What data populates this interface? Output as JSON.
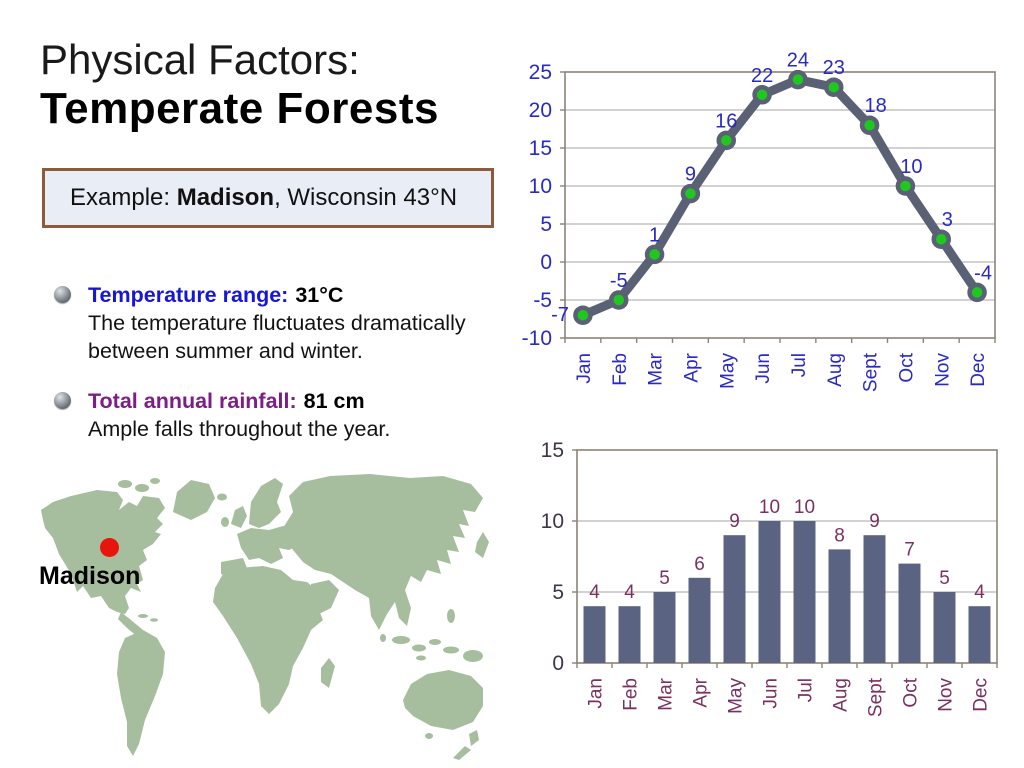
{
  "slide": {
    "title_line1": "Physical Factors:",
    "title_line2": "Temperate Forests",
    "example": {
      "prefix": "Example: ",
      "city": "Madison",
      "suffix": ", Wisconsin 43°N"
    },
    "bullets": [
      {
        "label": "Temperature range",
        "colon": ":",
        "value": "31°C",
        "desc": "The temperature fluctuates dramatically between summer and winter.",
        "label_color": "#1616D6"
      },
      {
        "label": "Total annual rainfall",
        "colon": ":",
        "value": "81 cm",
        "desc": "Ample falls throughout the year.",
        "label_color": "#7D1D86"
      }
    ],
    "map": {
      "label": "Madison",
      "marker_color": "#E8150D",
      "land_color": "#A6BE9D"
    }
  },
  "chart_data": [
    {
      "type": "line",
      "categories": [
        "Jan",
        "Feb",
        "Mar",
        "Apr",
        "May",
        "Jun",
        "Jul",
        "Aug",
        "Sept",
        "Oct",
        "Nov",
        "Dec"
      ],
      "values": [
        -7,
        -5,
        1,
        9,
        16,
        22,
        24,
        23,
        18,
        10,
        3,
        -4
      ],
      "ylim": [
        -10,
        25
      ],
      "ytick_step": 5,
      "grid": true,
      "legend": "none",
      "line_color": "#5A6175",
      "marker_color": "#1FC81F",
      "value_label_color": "#2929C4",
      "axis_label_color": "#2929C4"
    },
    {
      "type": "bar",
      "categories": [
        "Jan",
        "Feb",
        "Mar",
        "Apr",
        "May",
        "Jun",
        "Jul",
        "Aug",
        "Sept",
        "Oct",
        "Nov",
        "Dec"
      ],
      "values": [
        4,
        4,
        5,
        6,
        9,
        10,
        10,
        8,
        9,
        7,
        5,
        4
      ],
      "ylim": [
        0,
        15
      ],
      "ytick_step": 5,
      "grid": true,
      "legend": "none",
      "bar_color": "#5A6482",
      "value_label_color": "#7A3160",
      "axis_label_color": "#7A3160",
      "ytick_label_color": "#3E3547"
    }
  ]
}
